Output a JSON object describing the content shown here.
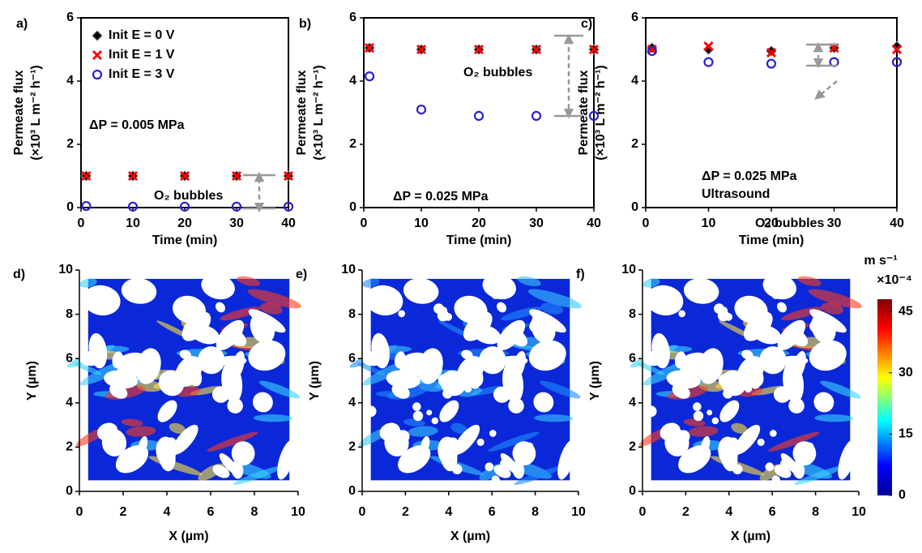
{
  "chart_data": [
    {
      "type": "scatter",
      "panel": "a)",
      "xlabel": "Time (min)",
      "ylabel": [
        "Permeate flux",
        "(×10³ L m⁻² h⁻¹)"
      ],
      "x": [
        1,
        10,
        20,
        30,
        40
      ],
      "xlim": [
        0,
        40
      ],
      "xticks": [
        0,
        10,
        20,
        30,
        40
      ],
      "ylim": [
        0,
        6
      ],
      "yticks": [
        0,
        2,
        4,
        6
      ],
      "series": [
        {
          "name": "Init E = 0 V",
          "color": "#000000",
          "marker": "diamond",
          "values": [
            1,
            1,
            1,
            1,
            1
          ]
        },
        {
          "name": "Init E = 1 V",
          "color": "#ff0000",
          "marker": "x",
          "values": [
            1,
            1,
            1,
            1,
            1
          ]
        },
        {
          "name": "Init E = 3 V",
          "color": "#2a1fd0",
          "marker": "circle",
          "values": [
            0.05,
            0.03,
            0.03,
            0.03,
            0.03
          ]
        }
      ],
      "annotations": [
        "ΔP = 0.005 MPa",
        "O₂ bubbles"
      ]
    },
    {
      "type": "scatter",
      "panel": "b)",
      "xlabel": "Time (min)",
      "ylabel": [
        "Permeate flux",
        "(×10³ L m⁻² h⁻¹)"
      ],
      "x": [
        1,
        10,
        20,
        30,
        40
      ],
      "xlim": [
        0,
        40
      ],
      "xticks": [
        0,
        10,
        20,
        30,
        40
      ],
      "ylim": [
        0,
        6
      ],
      "yticks": [
        0,
        2,
        4,
        6
      ],
      "series": [
        {
          "color": "#000000",
          "marker": "diamond",
          "values": [
            5.05,
            5.0,
            5.0,
            5.0,
            5.0
          ]
        },
        {
          "color": "#ff0000",
          "marker": "x",
          "values": [
            5.05,
            5.0,
            5.0,
            5.0,
            5.0
          ]
        },
        {
          "color": "#2a1fd0",
          "marker": "circle",
          "values": [
            4.15,
            3.1,
            2.9,
            2.9,
            2.9
          ]
        }
      ],
      "annotations": [
        "O₂ bubbles",
        "ΔP = 0.025 MPa"
      ]
    },
    {
      "type": "scatter",
      "panel": "c)",
      "xlabel": "Time (min)",
      "ylabel": [
        "Permeate flux",
        "(×10³ L m⁻² h⁻¹)"
      ],
      "x": [
        1,
        10,
        20,
        30,
        40
      ],
      "xlim": [
        0,
        40
      ],
      "xticks": [
        0,
        10,
        20,
        30,
        40
      ],
      "ylim": [
        0,
        6
      ],
      "yticks": [
        0,
        2,
        4,
        6
      ],
      "series": [
        {
          "color": "#000000",
          "marker": "diamond",
          "values": [
            5.05,
            5.0,
            4.95,
            5.05,
            5.1
          ]
        },
        {
          "color": "#ff0000",
          "marker": "x",
          "values": [
            5.0,
            5.1,
            4.9,
            5.05,
            5.0
          ]
        },
        {
          "color": "#2a1fd0",
          "marker": "circle",
          "values": [
            4.95,
            4.6,
            4.55,
            4.6,
            4.6
          ]
        }
      ],
      "annotations": [
        "ΔP = 0.025 MPa",
        "Ultrasound",
        "O₂ bubbles"
      ]
    },
    {
      "type": "field",
      "panel": "d)",
      "xlabel": "X (µm)",
      "ylabel": "Y (µm)",
      "xlim": [
        0,
        10
      ],
      "xticks": [
        0,
        2,
        4,
        6,
        8,
        10
      ],
      "ylim": [
        0,
        10
      ],
      "yticks": [
        0,
        2,
        4,
        6,
        8,
        10
      ]
    },
    {
      "type": "field",
      "panel": "e)",
      "xlabel": "X (µm)",
      "ylabel": "Y (µm)",
      "xlim": [
        0,
        10
      ],
      "xticks": [
        0,
        2,
        4,
        6,
        8,
        10
      ],
      "ylim": [
        0,
        10
      ],
      "yticks": [
        0,
        2,
        4,
        6,
        8,
        10
      ]
    },
    {
      "type": "field",
      "panel": "f)",
      "xlabel": "X (µm)",
      "ylabel": "Y (µm)",
      "xlim": [
        0,
        10
      ],
      "xticks": [
        0,
        2,
        4,
        6,
        8,
        10
      ],
      "ylim": [
        0,
        10
      ],
      "yticks": [
        0,
        2,
        4,
        6,
        8,
        10
      ]
    },
    {
      "type": "colorbar",
      "unit": "m s⁻¹",
      "scale": "×10⁻⁴",
      "lim": [
        0,
        48
      ],
      "ticks": [
        0,
        15,
        30,
        45
      ]
    }
  ]
}
